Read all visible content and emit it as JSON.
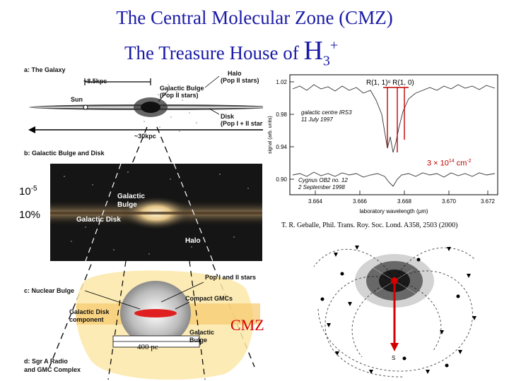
{
  "title": {
    "line1": "The Central Molecular Zone (CMZ)",
    "line2_prefix": "The Treasure House of",
    "line2_formula": "H",
    "line2_sub": "3",
    "line2_sup": "+"
  },
  "galaxy_panel": {
    "section_a": "a: The Galaxy",
    "scale_85": "~8.5kpc",
    "halo": "Halo",
    "halo_pop": "(Pop II stars)",
    "galactic_bulge": "Galactic Bulge",
    "bulge_pop": "(Pop II stars)",
    "sun": "Sun",
    "disk": "Disk",
    "disk_pop": "(Pop I + II stars)",
    "scale_30": "~30kpc",
    "section_b": "b: Galactic Bulge and Disk"
  },
  "photo_panel": {
    "galactic_bulge": "Galactic\nBulge",
    "galactic_disk": "Galactic Disk",
    "halo": "Halo"
  },
  "nuclear_panel": {
    "pop_stars": "Pop I and II stars",
    "section_c": "c: Nuclear Bulge",
    "compact_gmcs": "Compact GMCs",
    "disk_component": "Galactic Disk\ncomponent",
    "galactic_bulge": "Galactic\nBulge",
    "scale_400": "400 pc",
    "section_d": "d: Sgr A Radio\nand GMC Complex"
  },
  "side_labels": {
    "ten_minus5_base": "10",
    "ten_minus5_exp": "-5",
    "ten_percent": "10%"
  },
  "cmz_label": "CMZ",
  "spectrum": {
    "y_label": "signal (arb. units)",
    "x_label": "laboratory wavelength (μm)",
    "line_labels": "R(1, 1)ᵘ  R(1, 0)",
    "trace1": "galactic centre IRS3",
    "trace1_date": "11 July 1997",
    "trace2": "Cygnus OB2 no. 12",
    "trace2_date": "2 September 1998",
    "column_density": "3 × 10",
    "column_density_exp": "14",
    "column_density_unit": " cm",
    "column_density_unit_exp": "-2",
    "y_ticks": [
      "1.02",
      "0.98",
      "0.94",
      "0.90"
    ],
    "x_ticks": [
      "3.664",
      "3.666",
      "3.668",
      "3.670",
      "3.672"
    ]
  },
  "reference": "T. R. Geballe, Phil. Trans. Roy. Soc. Lond. A358, 2503 (2000)",
  "spiral_panel": {
    "sun_label": "S"
  },
  "colors": {
    "title": "#1a1aa8",
    "cmz_red": "#d40000",
    "spectrum_markers": "#c00000"
  }
}
